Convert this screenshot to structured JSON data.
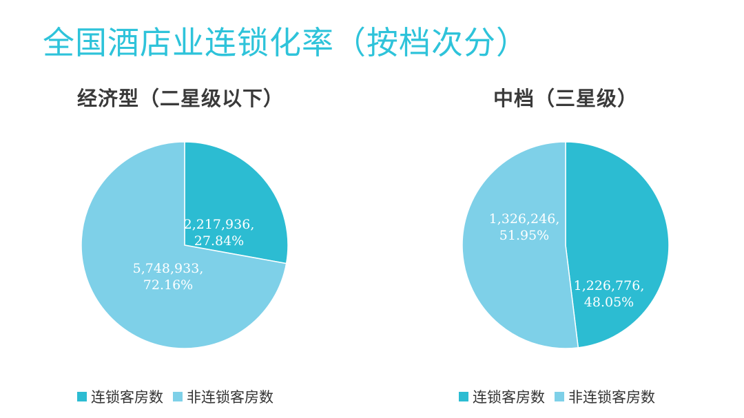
{
  "page_title": "全国酒店业连锁化率（按档次分）",
  "colors": {
    "chain": "#2cbcd2",
    "non_chain": "#7ed0e8",
    "title": "#2ec3da"
  },
  "chart_data": [
    {
      "type": "pie",
      "title": "经济型（二星级以下）",
      "slices": [
        {
          "name": "连锁客房数",
          "value": 2217936,
          "value_label": "2,217,936,",
          "percent_label": "27.84%",
          "percent": 27.84
        },
        {
          "name": "非连锁客房数",
          "value": 5748933,
          "value_label": "5,748,933,",
          "percent_label": "72.16%",
          "percent": 72.16
        }
      ],
      "legend": [
        "连锁客房数",
        "非连锁客房数"
      ],
      "legend_position": "bottom"
    },
    {
      "type": "pie",
      "title": "中档（三星级）",
      "slices": [
        {
          "name": "连锁客房数",
          "value": 1226776,
          "value_label": "1,226,776,",
          "percent_label": "48.05%",
          "percent": 48.05
        },
        {
          "name": "非连锁客房数",
          "value": 1326246,
          "value_label": "1,326,246,",
          "percent_label": "51.95%",
          "percent": 51.95
        }
      ],
      "legend": [
        "连锁客房数",
        "非连锁客房数"
      ],
      "legend_position": "bottom"
    }
  ]
}
